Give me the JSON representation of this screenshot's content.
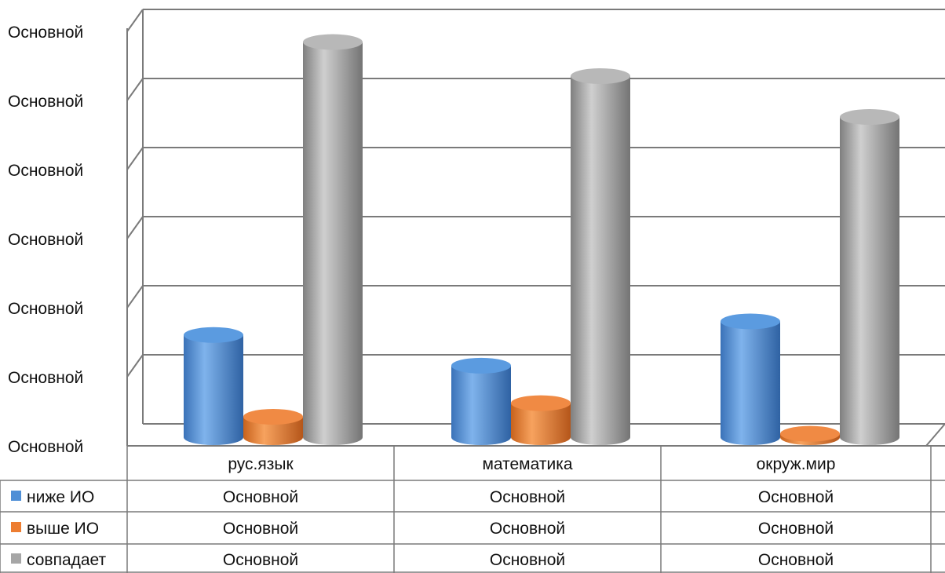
{
  "chart_data": {
    "type": "bar",
    "style": "3d-cylinder",
    "categories": [
      "рус.язык",
      "математика",
      "окруж.мир"
    ],
    "y_tick_labels": [
      "Основной",
      "Основной",
      "Основной",
      "Основной",
      "Основной",
      "Основной",
      "Основной"
    ],
    "ylim": [
      0,
      6
    ],
    "grid": true,
    "legend_placement": "data-table",
    "series": [
      {
        "name": "ниже  ИО",
        "color": "#4f8fd6",
        "values": [
          1.5,
          1.05,
          1.7
        ],
        "table_values": [
          "Основной",
          "Основной",
          "Основной"
        ]
      },
      {
        "name": "выше ИО",
        "color": "#ed7d31",
        "values": [
          0.3,
          0.5,
          0.05
        ],
        "table_values": [
          "Основной",
          "Основной",
          "Основной"
        ]
      },
      {
        "name": "совпадает",
        "color": "#a6a6a6",
        "values": [
          5.8,
          5.3,
          4.7
        ],
        "table_values": [
          "Основной",
          "Основной",
          "Основной"
        ]
      }
    ]
  }
}
